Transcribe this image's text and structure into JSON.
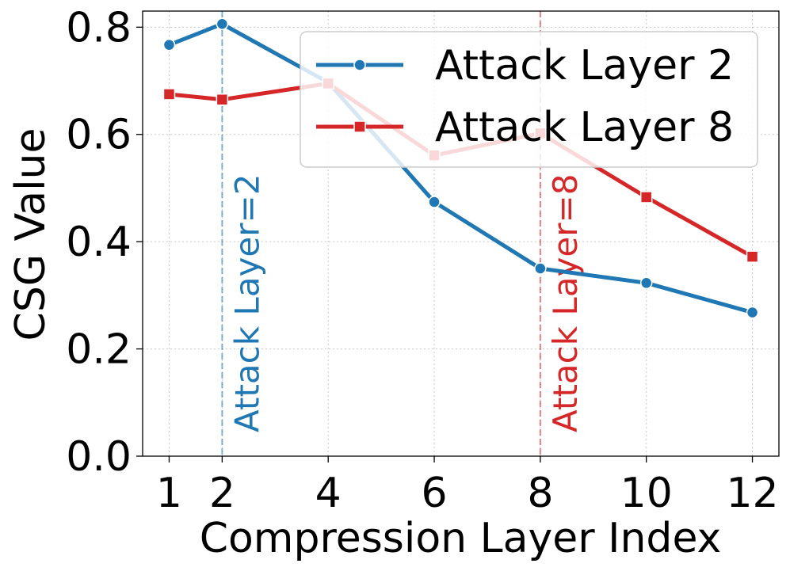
{
  "chart_data": {
    "type": "line",
    "title": "",
    "xlabel": "Compression Layer Index",
    "ylabel": "CSG Value",
    "xlim": [
      0.5,
      12.5
    ],
    "ylim": [
      0.0,
      0.83
    ],
    "xticks": [
      1,
      2,
      4,
      6,
      8,
      10,
      12
    ],
    "xtick_labels": [
      "1",
      "2",
      "4",
      "6",
      "8",
      "10",
      "12"
    ],
    "yticks": [
      0.0,
      0.2,
      0.4,
      0.6,
      0.8
    ],
    "ytick_labels": [
      "0.0",
      "0.2",
      "0.4",
      "0.6",
      "0.8"
    ],
    "grid": true,
    "legend_position": "top-right",
    "x": [
      1,
      2,
      4,
      6,
      8,
      10,
      12
    ],
    "series": [
      {
        "name": "Attack Layer 2",
        "color": "#1f77b4",
        "marker": "circle",
        "values": [
          0.767,
          0.806,
          0.697,
          0.474,
          0.35,
          0.323,
          0.268
        ]
      },
      {
        "name": "Attack Layer 8",
        "color": "#d62728",
        "marker": "square",
        "values": [
          0.675,
          0.665,
          0.695,
          0.561,
          0.602,
          0.483,
          0.372
        ]
      }
    ],
    "vlines": [
      {
        "x": 2,
        "color": "#1f77b4",
        "label": "Attack Layer=2"
      },
      {
        "x": 8,
        "color": "#d62728",
        "label": "Attack Layer=8"
      }
    ]
  }
}
